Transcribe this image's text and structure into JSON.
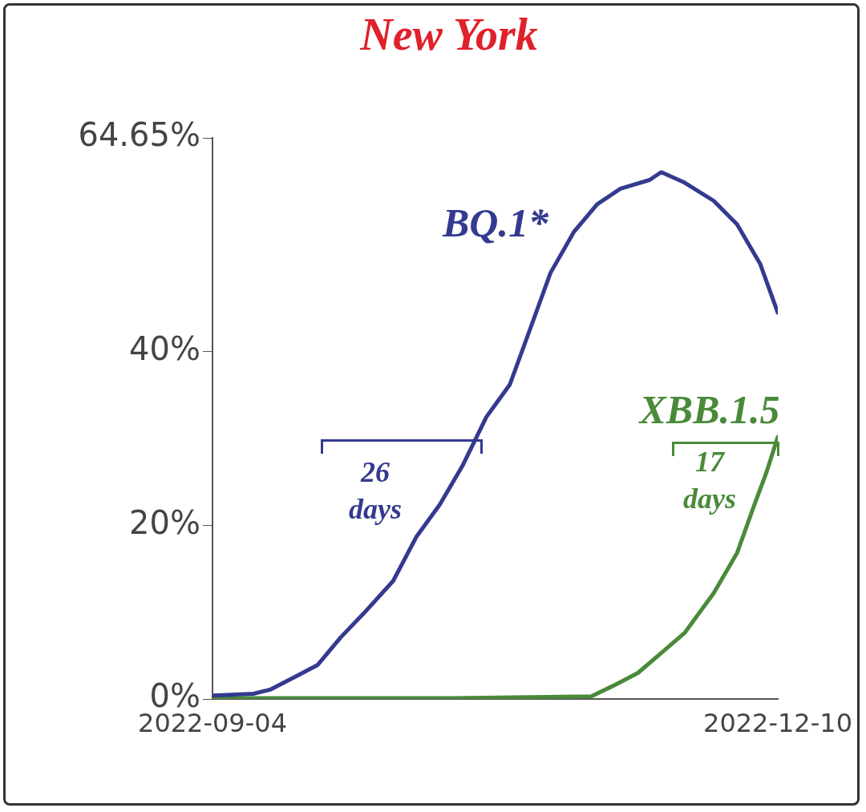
{
  "chart_data": {
    "type": "line",
    "title": "New York",
    "series": [
      {
        "name": "BQ.1*",
        "color": "#333a8f",
        "x": [
          "2022-09-04",
          "2022-09-11",
          "2022-09-14",
          "2022-09-18",
          "2022-09-22",
          "2022-09-26",
          "2022-09-30",
          "2022-10-05",
          "2022-10-09",
          "2022-10-13",
          "2022-10-17",
          "2022-10-21",
          "2022-10-25",
          "2022-10-28",
          "2022-11-01",
          "2022-11-05",
          "2022-11-09",
          "2022-11-13",
          "2022-11-18",
          "2022-11-20",
          "2022-11-24",
          "2022-11-29",
          "2022-12-03",
          "2022-12-07",
          "2022-12-10"
        ],
        "values": [
          0.4,
          0.6,
          1.1,
          2.5,
          3.9,
          7.1,
          9.9,
          13.6,
          18.7,
          22.4,
          27.0,
          32.5,
          36.2,
          41.7,
          49.1,
          53.8,
          57.0,
          58.8,
          59.8,
          60.7,
          59.5,
          57.4,
          54.7,
          50.1,
          44.5
        ]
      },
      {
        "name": "XBB.1.5",
        "color": "#4a8a3a",
        "x": [
          "2022-09-04",
          "2022-10-15",
          "2022-11-08",
          "2022-11-12",
          "2022-11-16",
          "2022-11-20",
          "2022-11-24",
          "2022-11-29",
          "2022-12-03",
          "2022-12-06",
          "2022-12-08",
          "2022-12-10"
        ],
        "values": [
          0.1,
          0.1,
          0.3,
          1.6,
          3.0,
          5.3,
          7.6,
          12.2,
          16.8,
          22.4,
          26.0,
          30.2
        ]
      }
    ],
    "annotations": [
      "26 days",
      {
        "text": "17 days",
        "x": "2022-12-10",
        "y": 30.2
      }
    ],
    "xlim": [
      "2022-09-04",
      "2022-12-10"
    ],
    "xticks": [
      "2022-09-04",
      "2022-12-10"
    ],
    "ylim": [
      0,
      64.65
    ],
    "yticks": [
      {
        "value": 0,
        "label": "0%"
      },
      {
        "value": 20,
        "label": "20%"
      },
      {
        "value": 40,
        "label": "40%"
      },
      {
        "value": 64.65,
        "label": "64.65%"
      }
    ],
    "grid": false,
    "legend": false,
    "marker": "none",
    "line_style": "solid"
  }
}
